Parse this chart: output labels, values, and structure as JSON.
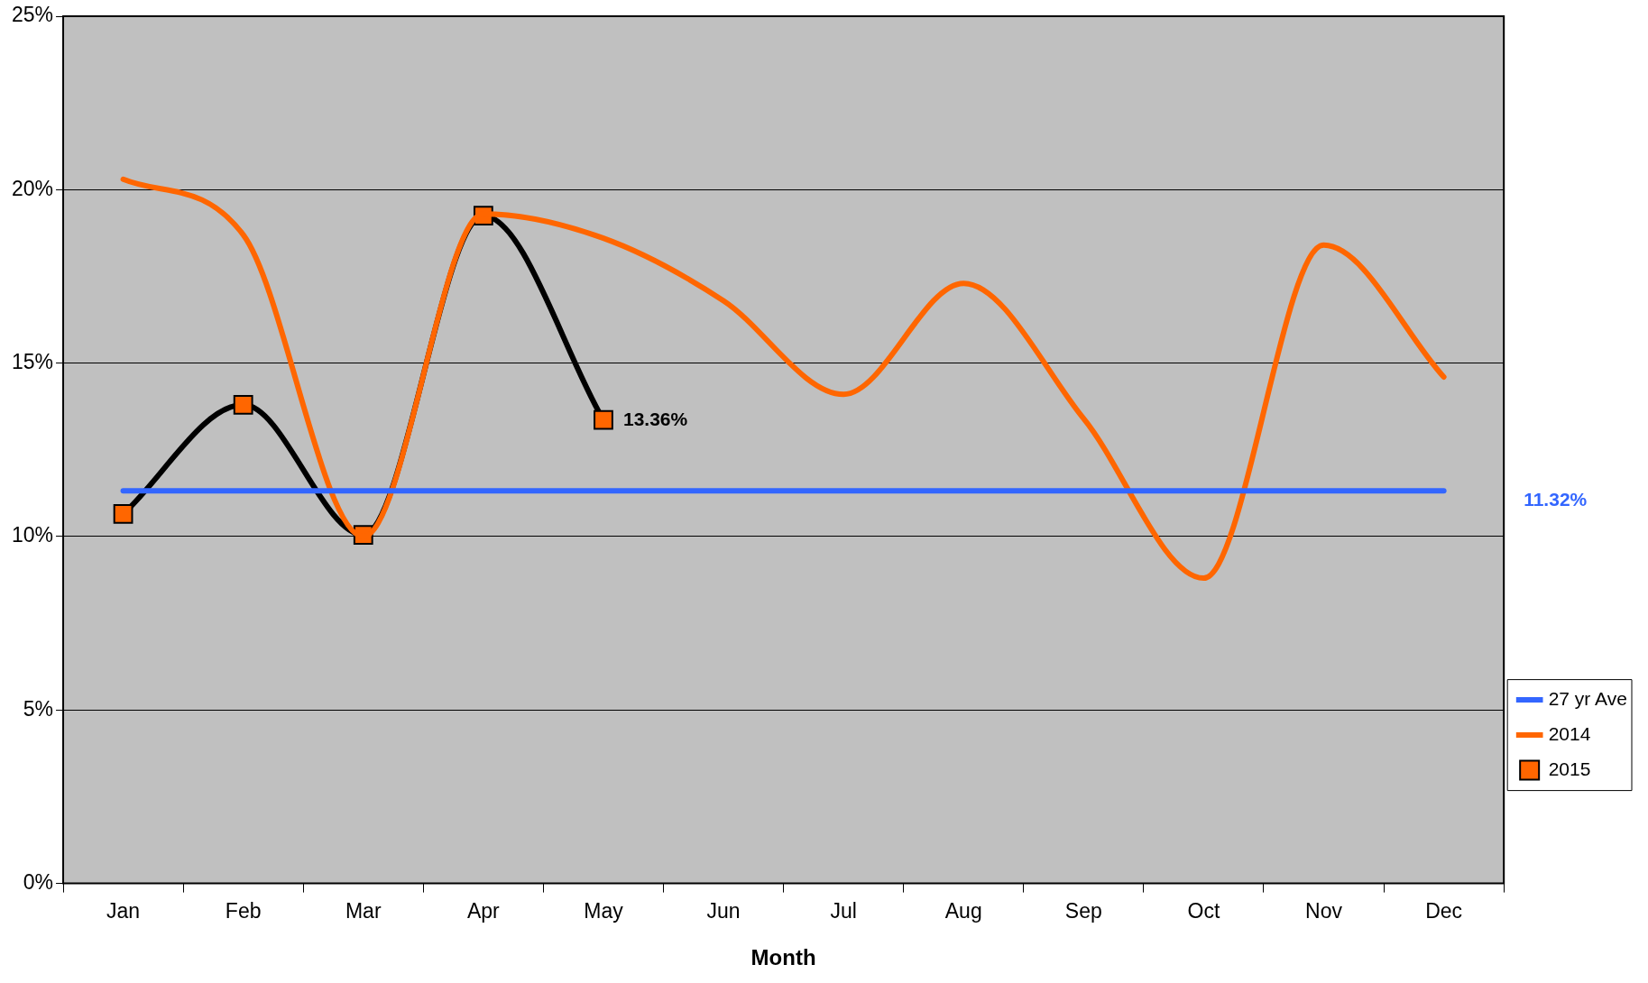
{
  "chart_data": {
    "type": "line",
    "xlabel": "Month",
    "categories": [
      "Jan",
      "Feb",
      "Mar",
      "Apr",
      "May",
      "Jun",
      "Jul",
      "Aug",
      "Sep",
      "Oct",
      "Nov",
      "Dec"
    ],
    "series": [
      {
        "name": "27 yr Ave",
        "color": "#3366ff",
        "values": [
          11.32,
          11.32,
          11.32,
          11.32,
          11.32,
          11.32,
          11.32,
          11.32,
          11.32,
          11.32,
          11.32,
          11.32
        ],
        "marker": "none"
      },
      {
        "name": "2014",
        "color": "#ff6600",
        "values": [
          20.3,
          18.7,
          10.0,
          19.3,
          18.6,
          16.8,
          14.1,
          17.3,
          13.4,
          8.8,
          18.4,
          14.6
        ],
        "marker": "none"
      },
      {
        "name": "2015",
        "color": "#000000",
        "values": [
          10.65,
          13.8,
          10.05,
          19.25,
          13.36,
          null,
          null,
          null,
          null,
          null,
          null,
          null
        ],
        "value_labels": [
          null,
          null,
          null,
          null,
          "13.36%",
          null,
          null,
          null,
          null,
          null,
          null,
          null
        ],
        "marker": "square"
      }
    ],
    "ylim": [
      0,
      25
    ],
    "yticks": [
      {
        "value": 0,
        "label": "0%"
      },
      {
        "value": 5,
        "label": "5%"
      },
      {
        "value": 10,
        "label": "10%"
      },
      {
        "value": 15,
        "label": "15%"
      },
      {
        "value": 20,
        "label": "20%"
      },
      {
        "value": 25,
        "label": "25%"
      }
    ],
    "annotations": [
      "11.32%"
    ],
    "grid": "y",
    "legend": "right",
    "line_style": "solid"
  }
}
